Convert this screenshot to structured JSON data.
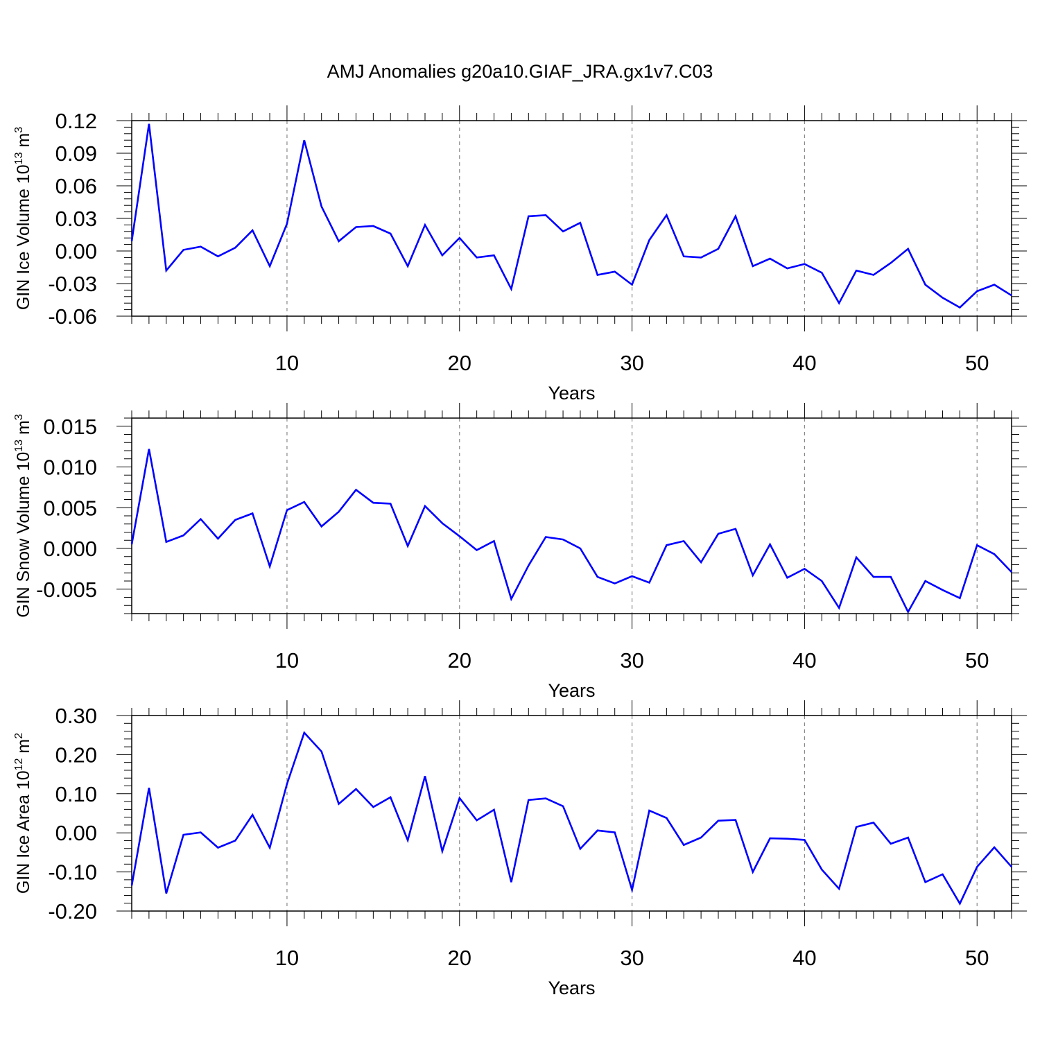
{
  "title": "AMJ Anomalies g20a10.GIAF_JRA.gx1v7.C03",
  "line_color": "#0000ff",
  "chart_data": [
    {
      "type": "line",
      "ylabel": "GIN Ice Volume 10",
      "ylabel_exp": "13",
      "ylabel_unit": " m",
      "ylabel_unit_exp": "3",
      "xlabel": "Years",
      "xlim": [
        1,
        52
      ],
      "ylim": [
        -0.06,
        0.12
      ],
      "yticks": [
        -0.06,
        -0.03,
        0.0,
        0.03,
        0.06,
        0.09,
        0.12
      ],
      "ytick_labels": [
        "-0.06",
        "-0.03",
        "0.00",
        "0.03",
        "0.06",
        "0.09",
        "0.12"
      ],
      "xticks": [
        10,
        20,
        30,
        40,
        50
      ],
      "xtick_labels": [
        "10",
        "20",
        "30",
        "40",
        "50"
      ],
      "x": [
        1,
        2,
        3,
        4,
        5,
        6,
        7,
        8,
        9,
        10,
        11,
        12,
        13,
        14,
        15,
        16,
        17,
        18,
        19,
        20,
        21,
        22,
        23,
        24,
        25,
        26,
        27,
        28,
        29,
        30,
        31,
        32,
        33,
        34,
        35,
        36,
        37,
        38,
        39,
        40,
        41,
        42,
        43,
        44,
        45,
        46,
        47,
        48,
        49,
        50,
        51,
        52
      ],
      "values": [
        0.009,
        0.117,
        -0.018,
        0.001,
        0.004,
        -0.005,
        0.003,
        0.019,
        -0.014,
        0.025,
        0.102,
        0.041,
        0.009,
        0.022,
        0.023,
        0.016,
        -0.014,
        0.024,
        -0.004,
        0.012,
        -0.006,
        -0.004,
        -0.035,
        0.032,
        0.033,
        0.018,
        0.026,
        -0.022,
        -0.019,
        -0.031,
        0.01,
        0.033,
        -0.005,
        -0.006,
        0.002,
        0.032,
        -0.014,
        -0.007,
        -0.016,
        -0.012,
        -0.02,
        -0.048,
        -0.018,
        -0.022,
        -0.011,
        0.002,
        -0.031,
        -0.043,
        -0.052,
        -0.037,
        -0.031,
        -0.041
      ]
    },
    {
      "type": "line",
      "ylabel": "GIN Snow Volume 10",
      "ylabel_exp": "13",
      "ylabel_unit": " m",
      "ylabel_unit_exp": "3",
      "xlabel": "Years",
      "xlim": [
        1,
        52
      ],
      "ylim": [
        -0.008,
        0.016
      ],
      "yticks": [
        -0.005,
        0.0,
        0.005,
        0.01,
        0.015
      ],
      "ytick_labels": [
        "-0.005",
        "0.000",
        "0.005",
        "0.010",
        "0.015"
      ],
      "xticks": [
        10,
        20,
        30,
        40,
        50
      ],
      "xtick_labels": [
        "10",
        "20",
        "30",
        "40",
        "50"
      ],
      "x": [
        1,
        2,
        3,
        4,
        5,
        6,
        7,
        8,
        9,
        10,
        11,
        12,
        13,
        14,
        15,
        16,
        17,
        18,
        19,
        20,
        21,
        22,
        23,
        24,
        25,
        26,
        27,
        28,
        29,
        30,
        31,
        32,
        33,
        34,
        35,
        36,
        37,
        38,
        39,
        40,
        41,
        42,
        43,
        44,
        45,
        46,
        47,
        48,
        49,
        50,
        51,
        52
      ],
      "values": [
        0.0005,
        0.0122,
        0.0008,
        0.0016,
        0.0036,
        0.0012,
        0.0035,
        0.0043,
        -0.0022,
        0.0047,
        0.0057,
        0.0027,
        0.0045,
        0.0072,
        0.0056,
        0.0055,
        0.0003,
        0.0052,
        0.0031,
        0.0015,
        -0.0002,
        0.0009,
        -0.0062,
        -0.0021,
        0.0014,
        0.0011,
        0.0,
        -0.0035,
        -0.0043,
        -0.0034,
        -0.0042,
        0.0004,
        0.0009,
        -0.0017,
        0.0018,
        0.0024,
        -0.0033,
        0.0005,
        -0.0036,
        -0.0025,
        -0.004,
        -0.0073,
        -0.0011,
        -0.0035,
        -0.0035,
        -0.0078,
        -0.004,
        -0.0051,
        -0.0061,
        0.0004,
        -0.0007,
        -0.0029
      ]
    },
    {
      "type": "line",
      "ylabel": "GIN Ice Area 10",
      "ylabel_exp": "12",
      "ylabel_unit": " m",
      "ylabel_unit_exp": "2",
      "xlabel": "Years",
      "xlim": [
        1,
        52
      ],
      "ylim": [
        -0.2,
        0.3
      ],
      "yticks": [
        -0.2,
        -0.1,
        0.0,
        0.1,
        0.2,
        0.3
      ],
      "ytick_labels": [
        "-0.20",
        "-0.10",
        "0.00",
        "0.10",
        "0.20",
        "0.30"
      ],
      "xticks": [
        10,
        20,
        30,
        40,
        50
      ],
      "xtick_labels": [
        "10",
        "20",
        "30",
        "40",
        "50"
      ],
      "x": [
        1,
        2,
        3,
        4,
        5,
        6,
        7,
        8,
        9,
        10,
        11,
        12,
        13,
        14,
        15,
        16,
        17,
        18,
        19,
        20,
        21,
        22,
        23,
        24,
        25,
        26,
        27,
        28,
        29,
        30,
        31,
        32,
        33,
        34,
        35,
        36,
        37,
        38,
        39,
        40,
        41,
        42,
        43,
        44,
        45,
        46,
        47,
        48,
        49,
        50,
        51,
        52
      ],
      "values": [
        -0.135,
        0.115,
        -0.155,
        -0.005,
        0.001,
        -0.038,
        -0.02,
        0.046,
        -0.038,
        0.125,
        0.256,
        0.208,
        0.074,
        0.112,
        0.066,
        0.091,
        -0.019,
        0.145,
        -0.047,
        0.089,
        0.032,
        0.059,
        -0.126,
        0.084,
        0.088,
        0.068,
        -0.041,
        0.006,
        0.001,
        -0.146,
        0.057,
        0.038,
        -0.031,
        -0.012,
        0.031,
        0.033,
        -0.1,
        -0.014,
        -0.015,
        -0.018,
        -0.094,
        -0.143,
        0.015,
        0.026,
        -0.028,
        -0.012,
        -0.126,
        -0.106,
        -0.181,
        -0.087,
        -0.037,
        -0.087
      ]
    }
  ]
}
